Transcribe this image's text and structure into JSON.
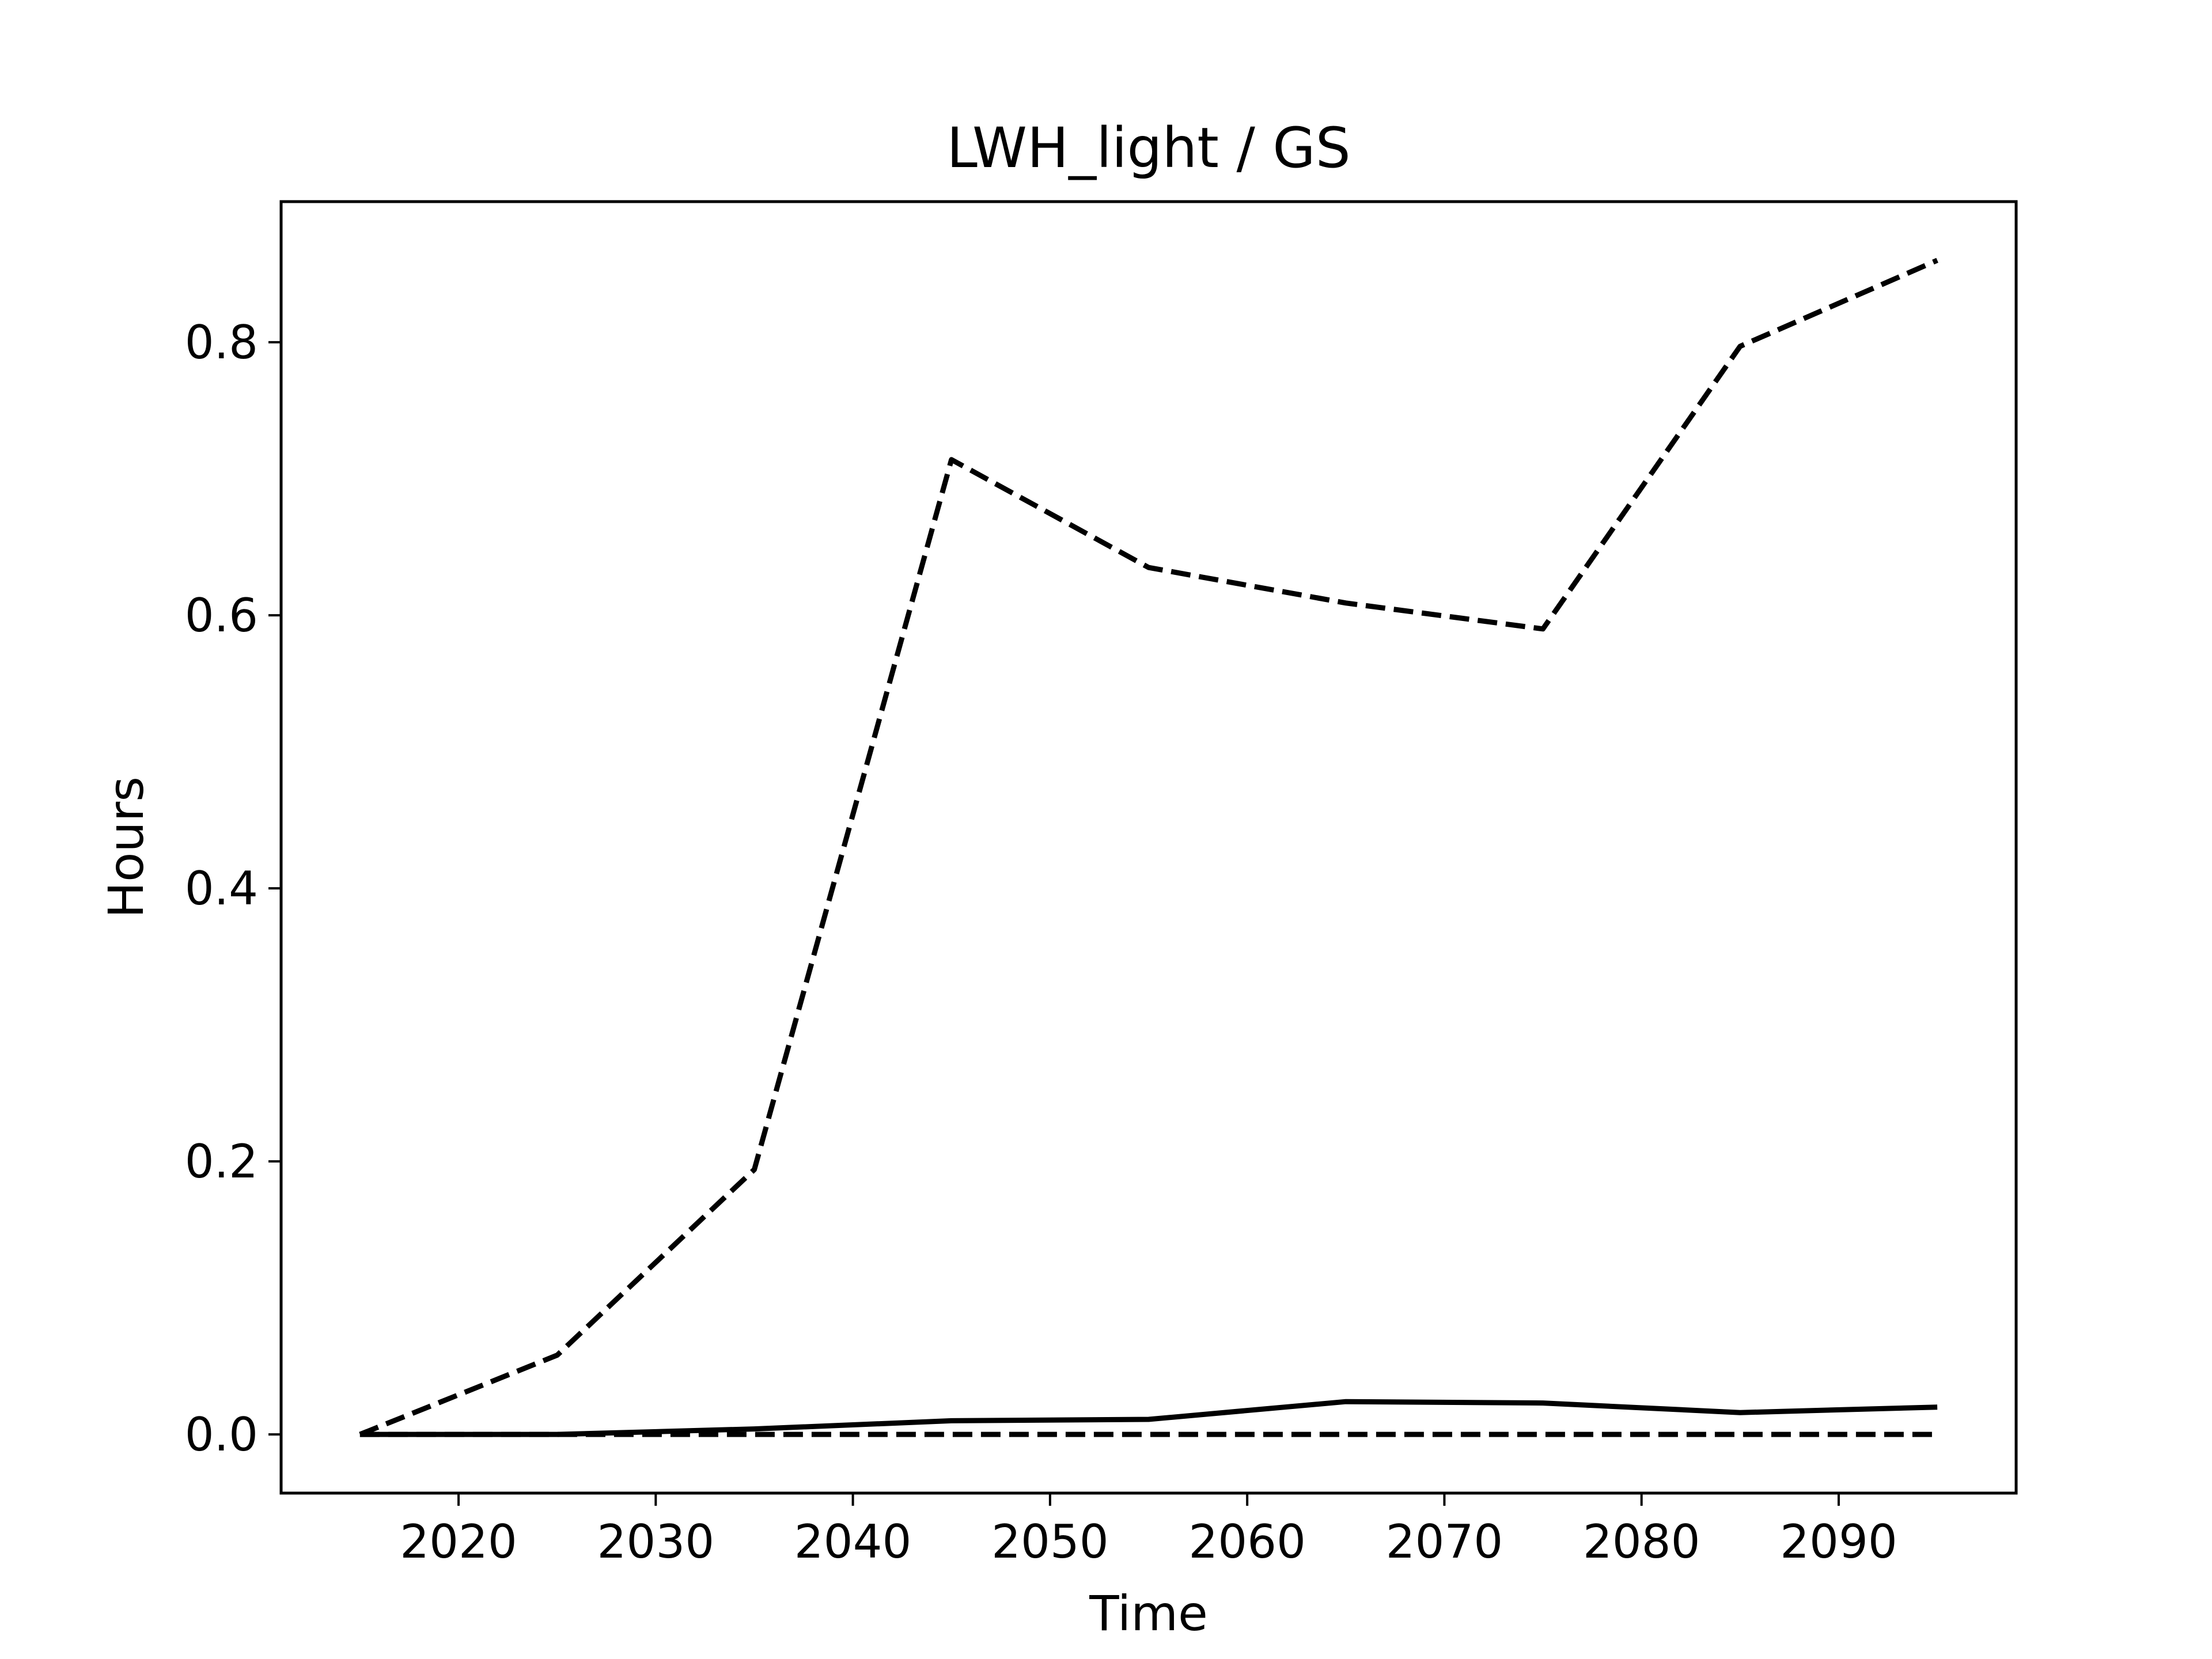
{
  "chart_data": {
    "type": "line",
    "title": "LWH_light / GS",
    "xlabel": "Time",
    "ylabel": "Hours",
    "xlim": [
      2011.0,
      2099.0
    ],
    "ylim": [
      -0.043,
      0.903
    ],
    "xticks": [
      2020,
      2030,
      2040,
      2050,
      2060,
      2070,
      2080,
      2090
    ],
    "xtick_labels": [
      "2020",
      "2030",
      "2040",
      "2050",
      "2060",
      "2070",
      "2080",
      "2090"
    ],
    "yticks": [
      0.0,
      0.2,
      0.4,
      0.6,
      0.8
    ],
    "ytick_labels": [
      "0.0",
      "0.2",
      "0.4",
      "0.6",
      "0.8"
    ],
    "grid": false,
    "x": [
      2015,
      2025,
      2035,
      2045,
      2055,
      2065,
      2075,
      2085,
      2095
    ],
    "series": [
      {
        "style": "dashed",
        "color": "#000000",
        "values": [
          0.0,
          0.058,
          0.194,
          0.714,
          0.635,
          0.609,
          0.59,
          0.797,
          0.86
        ]
      },
      {
        "style": "solid",
        "color": "#000000",
        "values": [
          0.0,
          0.0,
          0.004,
          0.01,
          0.011,
          0.024,
          0.023,
          0.016,
          0.02
        ]
      },
      {
        "style": "dashed",
        "color": "#000000",
        "values": [
          0.0,
          0.0,
          0.0,
          0.0,
          0.0,
          0.0,
          0.0,
          0.0,
          0.0
        ]
      }
    ]
  }
}
